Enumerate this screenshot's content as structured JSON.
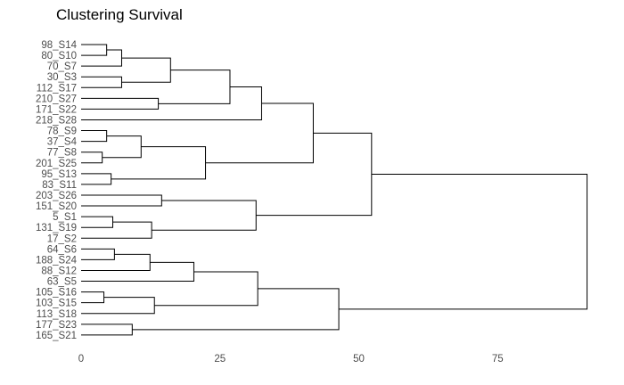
{
  "chart_data": {
    "type": "dendrogram",
    "title": "Clustering Survival",
    "xlabel": "",
    "ylabel": "",
    "xlim": [
      0,
      92
    ],
    "x_ticks": [
      0,
      25,
      50,
      75
    ],
    "grid": false,
    "legend": "none",
    "leaves": [
      "98_S14",
      "80_S10",
      "70_S7",
      "30_S3",
      "112_S17",
      "210_S27",
      "171_S22",
      "218_S28",
      "78_S9",
      "37_S4",
      "77_S8",
      "201_S25",
      "95_S13",
      "83_S11",
      "203_S26",
      "151_S20",
      "5_S1",
      "131_S19",
      "17_S2",
      "64_S6",
      "188_S24",
      "88_S12",
      "63_S5",
      "105_S16",
      "103_S15",
      "113_S18",
      "177_S23",
      "165_S21"
    ],
    "merges": [
      {
        "left": "98_S14",
        "right": "80_S10",
        "height": 4.6
      },
      {
        "left": "m0",
        "right": "70_S7",
        "height": 7.3
      },
      {
        "left": "30_S3",
        "right": "112_S17",
        "height": 7.3
      },
      {
        "left": "m1",
        "right": "m2",
        "height": 16.1
      },
      {
        "left": "210_S27",
        "right": "171_S22",
        "height": 13.9
      },
      {
        "left": "m3",
        "right": "m4",
        "height": 26.8
      },
      {
        "left": "m5",
        "right": "218_S28",
        "height": 32.5
      },
      {
        "left": "78_S9",
        "right": "37_S4",
        "height": 4.6
      },
      {
        "left": "77_S8",
        "right": "201_S25",
        "height": 3.8
      },
      {
        "left": "m7",
        "right": "m8",
        "height": 10.8
      },
      {
        "left": "95_S13",
        "right": "83_S11",
        "height": 5.4
      },
      {
        "left": "m9",
        "right": "m10",
        "height": 22.4
      },
      {
        "left": "m6",
        "right": "m11",
        "height": 41.8
      },
      {
        "left": "203_S26",
        "right": "151_S20",
        "height": 14.5
      },
      {
        "left": "5_S1",
        "right": "131_S19",
        "height": 5.7
      },
      {
        "left": "m14",
        "right": "17_S2",
        "height": 12.7
      },
      {
        "left": "m13",
        "right": "m15",
        "height": 31.5
      },
      {
        "left": "m12",
        "right": "m16",
        "height": 52.3
      },
      {
        "left": "64_S6",
        "right": "188_S24",
        "height": 6.0
      },
      {
        "left": "m18",
        "right": "88_S12",
        "height": 12.4
      },
      {
        "left": "m19",
        "right": "63_S5",
        "height": 20.3
      },
      {
        "left": "105_S16",
        "right": "103_S15",
        "height": 4.1
      },
      {
        "left": "m21",
        "right": "113_S18",
        "height": 13.2
      },
      {
        "left": "m20",
        "right": "m22",
        "height": 31.8
      },
      {
        "left": "177_S23",
        "right": "165_S21",
        "height": 9.2
      },
      {
        "left": "m23",
        "right": "m24",
        "height": 46.4
      },
      {
        "left": "m17",
        "right": "m25",
        "height": 91.1
      }
    ]
  }
}
